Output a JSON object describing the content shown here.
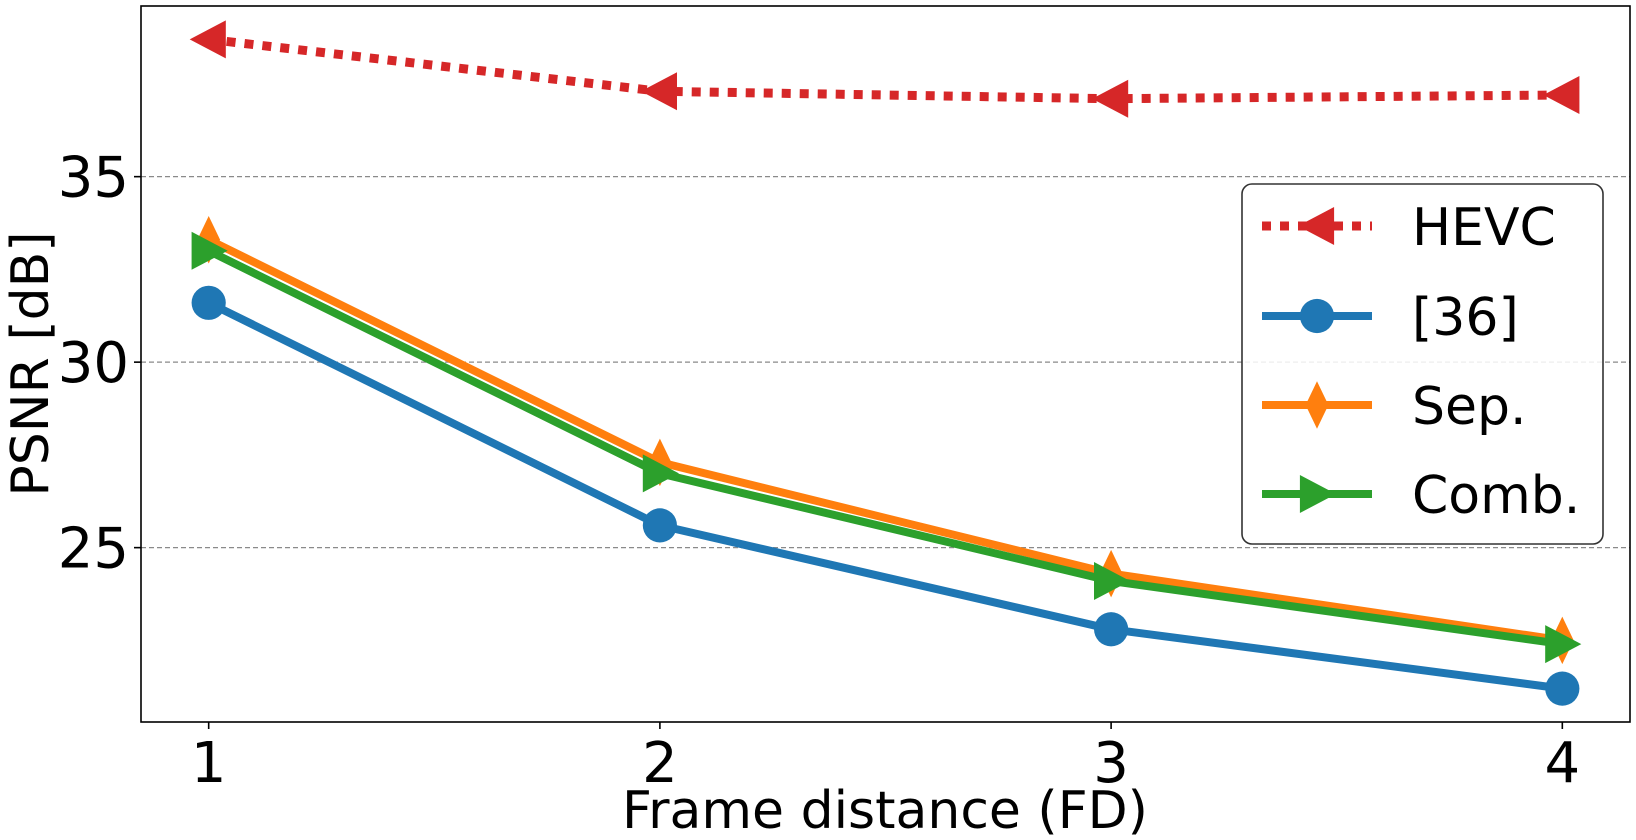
{
  "chart_data": {
    "type": "line",
    "title": "",
    "xlabel": "Frame distance (FD)",
    "ylabel": "PSNR [dB]",
    "x": [
      1,
      2,
      3,
      4
    ],
    "x_tick_labels": [
      "1",
      "2",
      "3",
      "4"
    ],
    "y_ticks": [
      25,
      30,
      35
    ],
    "y_tick_labels": [
      "25",
      "30",
      "35"
    ],
    "xlim": [
      0.85,
      4.15
    ],
    "ylim": [
      20.3,
      39.6
    ],
    "grid": "horizontal dashed",
    "legend_placement": "right",
    "series": [
      {
        "name": "HEVC",
        "values": [
          38.7,
          37.3,
          37.1,
          37.2
        ],
        "color": "#d62728",
        "marker": "triangle-left",
        "linestyle": "dotted"
      },
      {
        "name": "[36]",
        "values": [
          31.6,
          25.6,
          22.8,
          21.2
        ],
        "color": "#1f77b4",
        "marker": "circle",
        "linestyle": "solid"
      },
      {
        "name": "Sep.",
        "values": [
          33.3,
          27.3,
          24.3,
          22.5
        ],
        "color": "#ff7f0e",
        "marker": "thin-diamond",
        "linestyle": "solid"
      },
      {
        "name": "Comb.",
        "values": [
          33.0,
          27.0,
          24.1,
          22.4
        ],
        "color": "#2ca02c",
        "marker": "triangle-right",
        "linestyle": "solid"
      }
    ]
  }
}
